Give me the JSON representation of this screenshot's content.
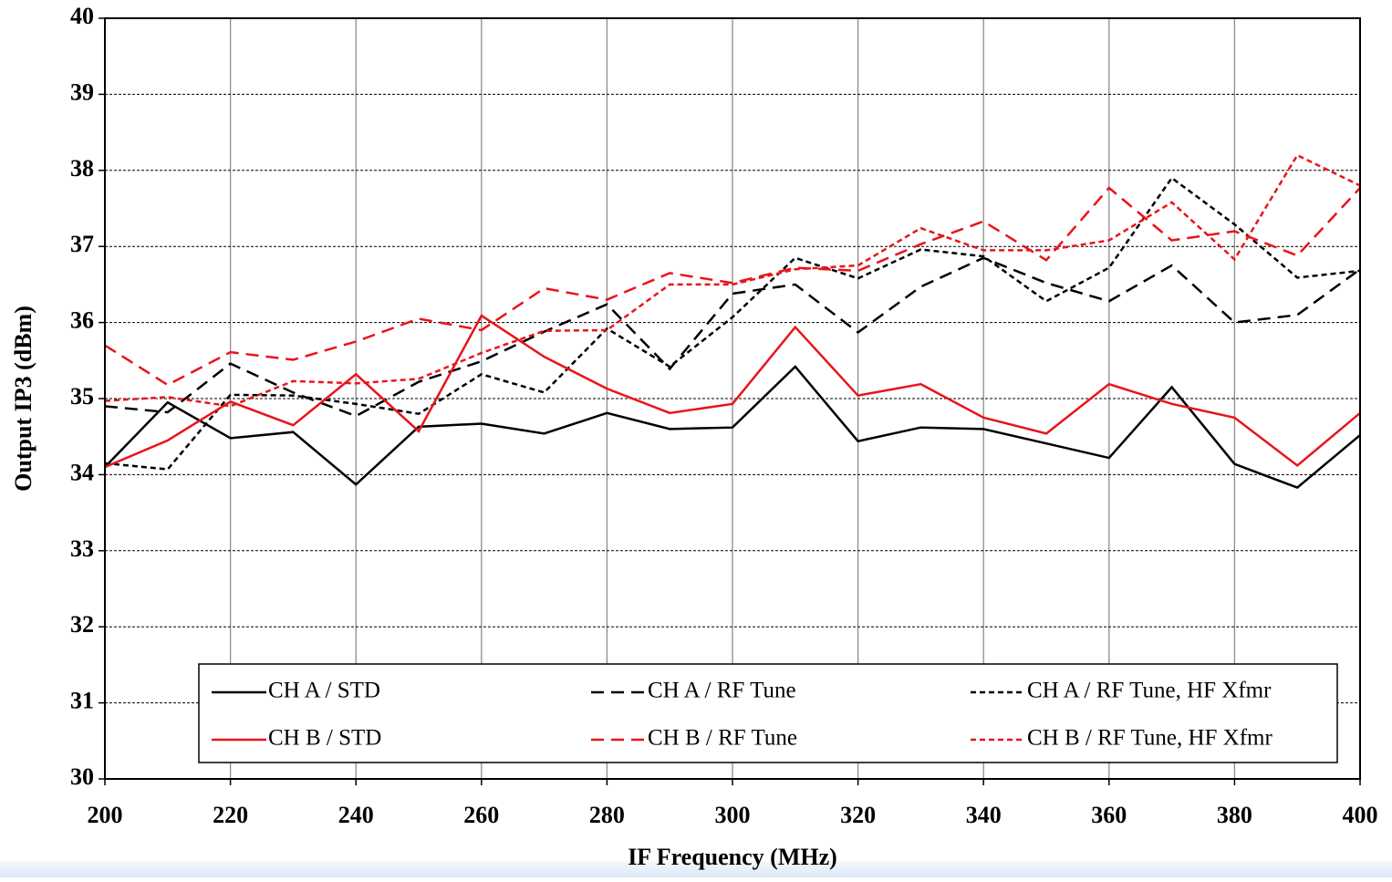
{
  "chart_data": {
    "type": "line",
    "xlabel": "IF Frequency (MHz)",
    "ylabel": "Output IP3 (dBm)",
    "x": [
      200,
      210,
      220,
      230,
      240,
      250,
      260,
      270,
      280,
      290,
      300,
      310,
      320,
      330,
      340,
      350,
      360,
      370,
      380,
      390,
      400
    ],
    "xlim": [
      200,
      400
    ],
    "xticks": [
      200,
      220,
      240,
      260,
      280,
      300,
      320,
      340,
      360,
      380,
      400
    ],
    "ylim": [
      30,
      40
    ],
    "yticks": [
      30,
      31,
      32,
      33,
      34,
      35,
      36,
      37,
      38,
      39,
      40
    ],
    "grid": true,
    "legend": "bottom",
    "series": [
      {
        "name": "CH A /  STD",
        "color": "#000000",
        "dash": "solid",
        "values": [
          34.1,
          34.95,
          34.48,
          34.56,
          33.87,
          34.63,
          34.67,
          34.54,
          34.81,
          34.6,
          34.62,
          35.42,
          34.44,
          34.62,
          34.6,
          34.41,
          34.22,
          35.15,
          34.14,
          33.83,
          34.52
        ]
      },
      {
        "name": "CH A /  RF Tune",
        "color": "#000000",
        "dash": "long",
        "values": [
          34.9,
          34.82,
          35.46,
          35.08,
          34.77,
          35.22,
          35.49,
          35.88,
          36.24,
          35.39,
          36.38,
          36.5,
          35.87,
          36.47,
          36.85,
          36.52,
          36.28,
          36.75,
          36.0,
          36.1,
          36.7
        ]
      },
      {
        "name": "CH A /  RF Tune, HF Xfmr",
        "color": "#000000",
        "dash": "short",
        "values": [
          34.15,
          34.07,
          35.05,
          35.04,
          34.93,
          34.8,
          35.32,
          35.08,
          35.92,
          35.42,
          36.07,
          36.85,
          36.58,
          36.96,
          36.87,
          36.28,
          36.72,
          37.9,
          37.29,
          36.59,
          36.68
        ]
      },
      {
        "name": "CH B /  STD",
        "color": "#e8141b",
        "dash": "solid",
        "values": [
          34.1,
          34.45,
          34.96,
          34.65,
          35.32,
          34.57,
          36.09,
          35.55,
          35.13,
          34.81,
          34.93,
          35.94,
          35.04,
          35.19,
          34.75,
          34.54,
          35.19,
          34.93,
          34.75,
          34.12,
          34.81
        ]
      },
      {
        "name": "CH B /  RF Tune",
        "color": "#e8141b",
        "dash": "long",
        "values": [
          35.7,
          35.18,
          35.61,
          35.51,
          35.75,
          36.05,
          35.9,
          36.45,
          36.3,
          36.65,
          36.52,
          36.72,
          36.68,
          37.03,
          37.33,
          36.82,
          37.77,
          37.08,
          37.2,
          36.88,
          37.77
        ]
      },
      {
        "name": "CH B /  RF Tune, HF Xfmr",
        "color": "#e8141b",
        "dash": "short",
        "values": [
          34.97,
          35.02,
          34.9,
          35.23,
          35.2,
          35.26,
          35.6,
          35.89,
          35.9,
          36.5,
          36.5,
          36.7,
          36.75,
          37.24,
          36.95,
          36.95,
          37.08,
          37.58,
          36.83,
          38.2,
          37.8
        ]
      }
    ]
  }
}
